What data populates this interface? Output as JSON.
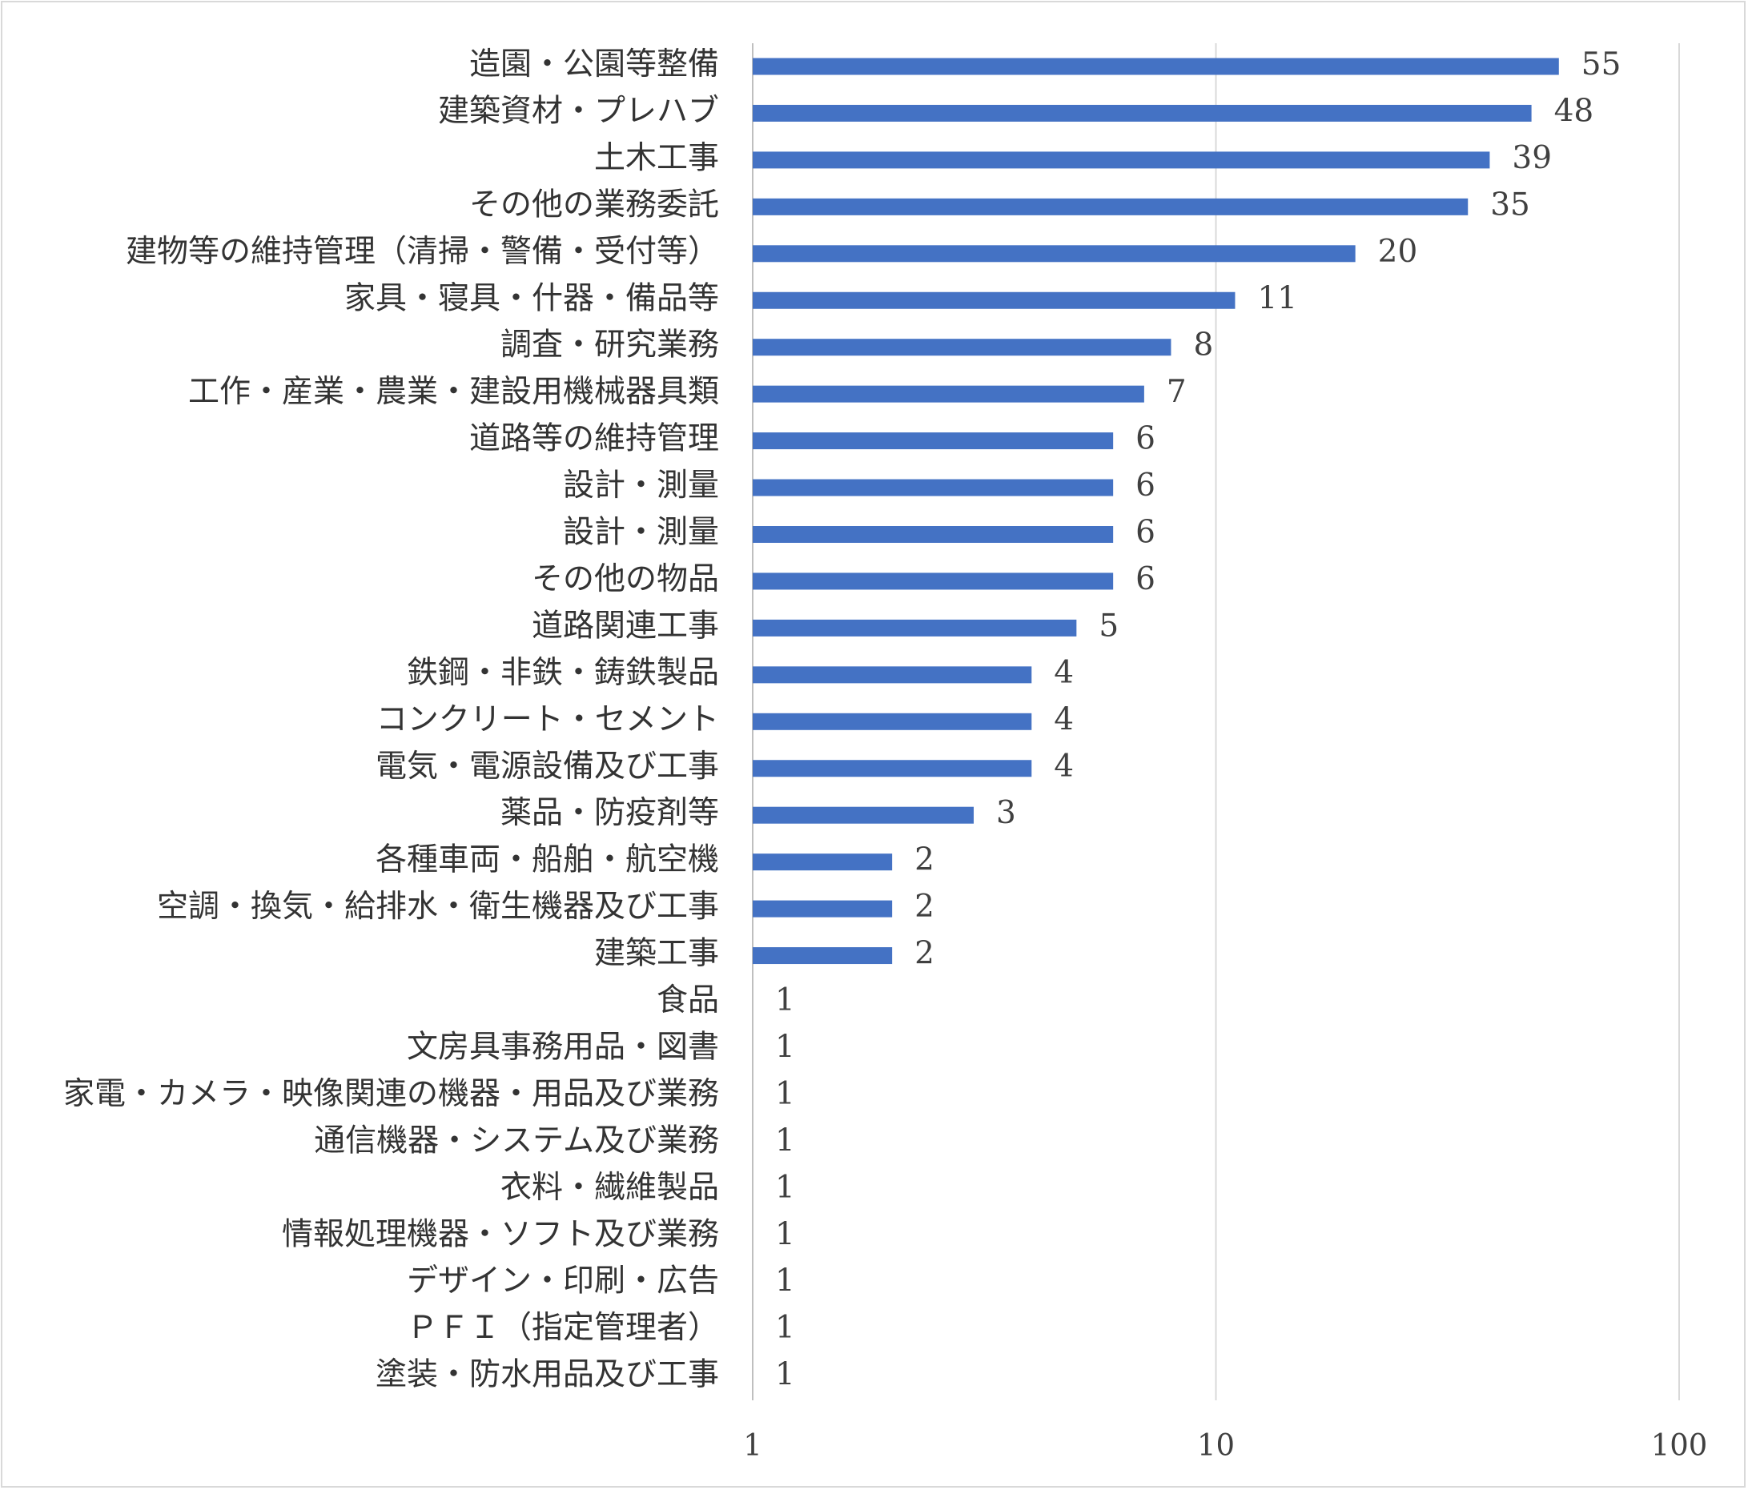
{
  "chart_data": {
    "type": "bar",
    "orientation": "horizontal",
    "x_scale": "log",
    "xlim": [
      1,
      100
    ],
    "x_ticks": [
      "1",
      "10",
      "100"
    ],
    "x_tick_values": [
      1,
      10,
      100
    ],
    "grid": true,
    "legend": "none",
    "bar_color": "#4472c4",
    "title": "",
    "xlabel": "",
    "ylabel": "",
    "categories": [
      "造園・公園等整備",
      "建築資材・プレハブ",
      "土木工事",
      "その他の業務委託",
      "建物等の維持管理（清掃・警備・受付等）",
      "家具・寝具・什器・備品等",
      "調査・研究業務",
      "工作・産業・農業・建設用機械器具類",
      "道路等の維持管理",
      "設計・測量",
      "設計・測量",
      "その他の物品",
      "道路関連工事",
      "鉄鋼・非鉄・鋳鉄製品",
      "コンクリート・セメント",
      "電気・電源設備及び工事",
      "薬品・防疫剤等",
      "各種車両・船舶・航空機",
      "空調・換気・給排水・衛生機器及び工事",
      "建築工事",
      "食品",
      "文房具事務用品・図書",
      "家電・カメラ・映像関連の機器・用品及び業務",
      "通信機器・システム及び業務",
      "衣料・繊維製品",
      "情報処理機器・ソフト及び業務",
      "デザイン・印刷・広告",
      "ＰＦＩ（指定管理者）",
      "塗装・防水用品及び工事"
    ],
    "values": [
      55,
      48,
      39,
      35,
      20,
      11,
      8,
      7,
      6,
      6,
      6,
      6,
      5,
      4,
      4,
      4,
      3,
      2,
      2,
      2,
      1,
      1,
      1,
      1,
      1,
      1,
      1,
      1,
      1
    ],
    "value_labels": [
      "55",
      "48",
      "39",
      "35",
      "20",
      "11",
      "8",
      "7",
      "6",
      "6",
      "6",
      "6",
      "5",
      "4",
      "4",
      "4",
      "3",
      "2",
      "2",
      "2",
      "1",
      "1",
      "1",
      "1",
      "1",
      "1",
      "1",
      "1",
      "1"
    ]
  }
}
